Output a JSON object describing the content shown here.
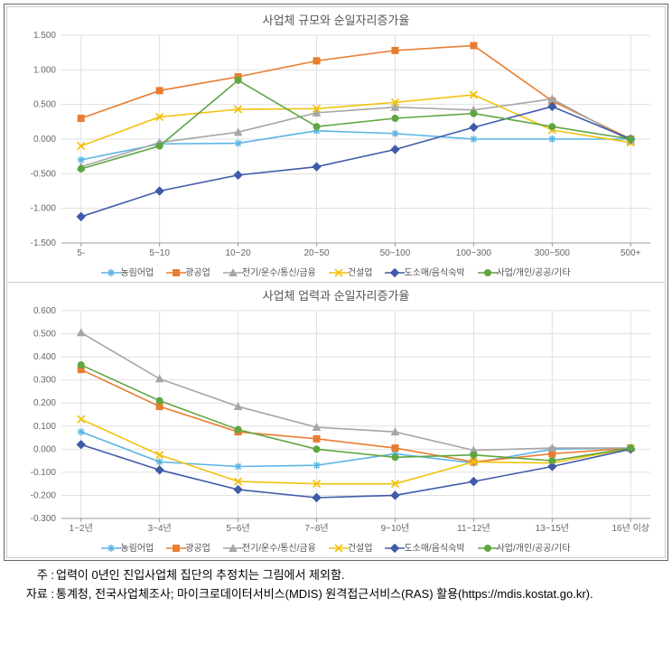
{
  "series_meta": [
    {
      "key": "s1",
      "label": "농림어업",
      "color": "#5ab4e4",
      "marker": "asterisk"
    },
    {
      "key": "s2",
      "label": "광공업",
      "color": "#e87d31",
      "marker": "square"
    },
    {
      "key": "s3",
      "label": "전기/운수/통신/금융",
      "color": "#a6a6a6",
      "marker": "triangle"
    },
    {
      "key": "s4",
      "label": "건설업",
      "color": "#f2c20f",
      "marker": "cross"
    },
    {
      "key": "s5",
      "label": "도소매/음식숙박",
      "color": "#3f5ba9",
      "marker": "diamond"
    },
    {
      "key": "s6",
      "label": "사업/개인/공공/기타",
      "color": "#5fa641",
      "marker": "circle"
    }
  ],
  "chart1": {
    "title": "사업체 규모와 순일자리증가율",
    "categories": [
      "5-",
      "5~10",
      "10~20",
      "20~50",
      "50~100",
      "100~300",
      "300~500",
      "500+"
    ],
    "ylim": [
      -1.5,
      1.5
    ],
    "ytick_step": 0.5,
    "grid_color": "#e0e0e0",
    "background_color": "#ffffff",
    "label_fontsize": 10,
    "title_fontsize": 13,
    "series": {
      "s1": [
        -0.3,
        -0.07,
        -0.06,
        0.12,
        0.08,
        0.0,
        0.0,
        0.0
      ],
      "s2": [
        0.3,
        0.7,
        0.9,
        1.13,
        1.28,
        1.35,
        0.55,
        0.0
      ],
      "s3": [
        -0.4,
        -0.05,
        0.1,
        0.38,
        0.46,
        0.42,
        0.58,
        -0.03
      ],
      "s4": [
        -0.1,
        0.32,
        0.43,
        0.44,
        0.53,
        0.64,
        0.13,
        -0.05
      ],
      "s5": [
        -1.12,
        -0.75,
        -0.52,
        -0.4,
        -0.15,
        0.17,
        0.47,
        0.0
      ],
      "s6": [
        -0.43,
        -0.1,
        0.85,
        0.18,
        0.3,
        0.37,
        0.18,
        0.0
      ]
    }
  },
  "chart2": {
    "title": "사업체 업력과 순일자리증가율",
    "categories": [
      "1~2년",
      "3~4년",
      "5~6년",
      "7~8년",
      "9~10년",
      "11~12년",
      "13~15년",
      "16년 이상"
    ],
    "ylim": [
      -0.3,
      0.6
    ],
    "ytick_step": 0.1,
    "grid_color": "#e0e0e0",
    "background_color": "#ffffff",
    "label_fontsize": 10,
    "title_fontsize": 13,
    "series": {
      "s1": [
        0.075,
        -0.055,
        -0.075,
        -0.07,
        -0.02,
        -0.06,
        0.0,
        0.005
      ],
      "s2": [
        0.345,
        0.185,
        0.075,
        0.045,
        0.005,
        -0.055,
        -0.02,
        0.005
      ],
      "s3": [
        0.505,
        0.305,
        0.185,
        0.095,
        0.075,
        -0.005,
        0.005,
        0.005
      ],
      "s4": [
        0.13,
        -0.025,
        -0.14,
        -0.15,
        -0.15,
        -0.055,
        -0.06,
        0.005
      ],
      "s5": [
        0.02,
        -0.09,
        -0.175,
        -0.21,
        -0.2,
        -0.14,
        -0.075,
        0.0
      ],
      "s6": [
        0.365,
        0.21,
        0.085,
        0.0,
        -0.035,
        -0.025,
        -0.05,
        0.005
      ]
    }
  },
  "notes": {
    "line1_label": "주 :",
    "line1_body": "업력이 0년인 진입사업체 집단의 추정치는 그림에서 제외함.",
    "line2_label": "자료 :",
    "line2_body": "통계청, 전국사업체조사; 마이크로데이터서비스(MDIS) 원격접근서비스(RAS) 활용(https://mdis.kostat.go.kr)."
  }
}
